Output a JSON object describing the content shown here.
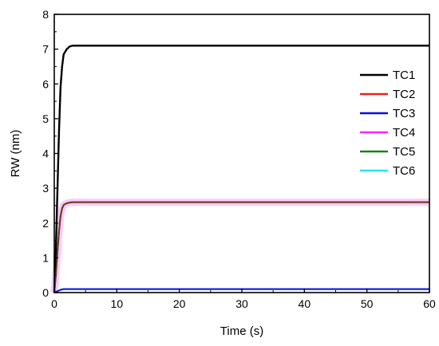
{
  "chart_data": {
    "type": "line",
    "xlabel": "Time (s)",
    "ylabel": "RW (nm)",
    "xlim": [
      0,
      60
    ],
    "ylim": [
      0,
      8
    ],
    "x_ticks": [
      0,
      10,
      20,
      30,
      40,
      50,
      60
    ],
    "y_ticks": [
      0,
      1,
      2,
      3,
      4,
      5,
      6,
      7,
      8
    ],
    "grid": false,
    "legend_position": "right",
    "x": [
      0,
      0.25,
      0.5,
      0.75,
      1,
      1.25,
      1.5,
      2,
      2.5,
      3,
      4,
      5,
      10,
      20,
      30,
      40,
      50,
      60
    ],
    "series": [
      {
        "name": "TC1",
        "color": "#000000",
        "values": [
          0,
          1.2,
          2.9,
          4.6,
          5.9,
          6.5,
          6.85,
          7.0,
          7.08,
          7.1,
          7.1,
          7.1,
          7.1,
          7.1,
          7.1,
          7.1,
          7.1,
          7.1
        ]
      },
      {
        "name": "TC2",
        "color": "#e8221c",
        "values": [
          0,
          0.5,
          1.15,
          1.75,
          2.2,
          2.42,
          2.52,
          2.57,
          2.59,
          2.6,
          2.6,
          2.6,
          2.6,
          2.6,
          2.6,
          2.6,
          2.6,
          2.6
        ]
      },
      {
        "name": "TC3",
        "color": "#0b0be0",
        "values": [
          0,
          0.02,
          0.04,
          0.06,
          0.08,
          0.09,
          0.1,
          0.1,
          0.1,
          0.1,
          0.1,
          0.1,
          0.1,
          0.1,
          0.1,
          0.1,
          0.1,
          0.1
        ]
      },
      {
        "name": "TC4",
        "color": "#ff22ff",
        "values": [
          0,
          0.5,
          1.15,
          1.75,
          2.2,
          2.42,
          2.52,
          2.57,
          2.59,
          2.6,
          2.6,
          2.6,
          2.6,
          2.6,
          2.6,
          2.6,
          2.6,
          2.6
        ]
      },
      {
        "name": "TC5",
        "color": "#1a801a",
        "values": [
          0,
          0.5,
          1.15,
          1.75,
          2.2,
          2.42,
          2.52,
          2.57,
          2.59,
          2.6,
          2.6,
          2.6,
          2.6,
          2.6,
          2.6,
          2.6,
          2.6,
          2.6
        ]
      },
      {
        "name": "TC6",
        "color": "#22e6ee",
        "values": [
          0,
          0.02,
          0.04,
          0.06,
          0.08,
          0.09,
          0.1,
          0.1,
          0.1,
          0.1,
          0.1,
          0.1,
          0.1,
          0.1,
          0.1,
          0.1,
          0.1,
          0.1
        ]
      }
    ]
  }
}
